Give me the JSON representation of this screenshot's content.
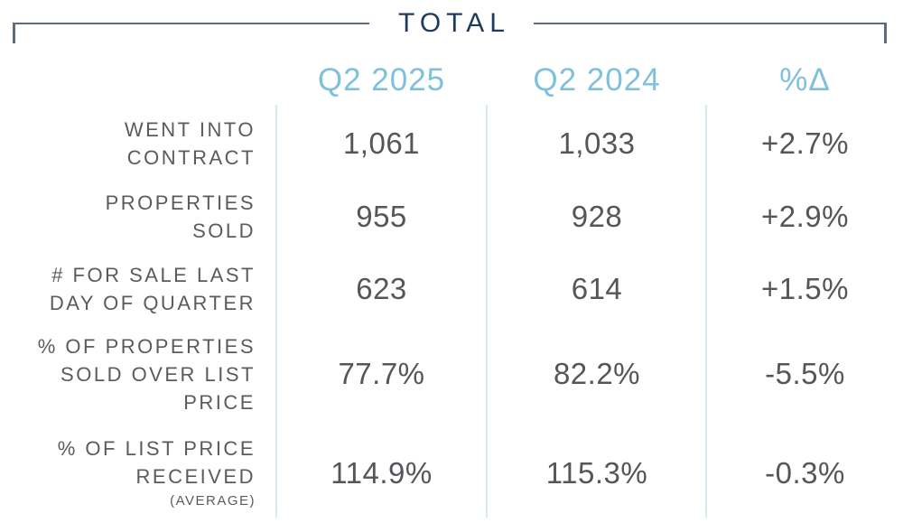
{
  "header": {
    "title": "TOTAL"
  },
  "table": {
    "columns": [
      "Q2 2025",
      "Q2 2024",
      "%Δ"
    ],
    "rows": [
      {
        "label_lines": [
          "WENT INTO",
          "CONTRACT"
        ],
        "values": [
          "1,061",
          "1,033",
          "+2.7%"
        ]
      },
      {
        "label_lines": [
          "PROPERTIES",
          "SOLD"
        ],
        "values": [
          "955",
          "928",
          "+2.9%"
        ]
      },
      {
        "label_lines": [
          "# FOR SALE LAST",
          "DAY OF QUARTER"
        ],
        "values": [
          "623",
          "614",
          "+1.5%"
        ]
      },
      {
        "label_lines": [
          "% OF PROPERTIES",
          "SOLD OVER LIST",
          "PRICE"
        ],
        "values": [
          "77.7%",
          "82.2%",
          "-5.5%"
        ]
      },
      {
        "label_lines": [
          "% OF LIST PRICE",
          "RECEIVED"
        ],
        "sublabel": "(AVERAGE)",
        "values": [
          "114.9%",
          "115.3%",
          "-0.3%"
        ]
      }
    ]
  },
  "colors": {
    "title_navy": "#1e3a5c",
    "bracket_slate": "#5d6b80",
    "header_blue": "#7fc1dd",
    "divider_light_blue": "#d8eaef",
    "text_gray": "#58595b"
  },
  "chart_data": {
    "type": "table",
    "title": "TOTAL",
    "columns": [
      "Metric",
      "Q2 2025",
      "Q2 2024",
      "%Δ"
    ],
    "rows": [
      {
        "metric": "WENT INTO CONTRACT",
        "q2_2025": 1061,
        "q2_2024": 1033,
        "pct_change": 2.7
      },
      {
        "metric": "PROPERTIES SOLD",
        "q2_2025": 955,
        "q2_2024": 928,
        "pct_change": 2.9
      },
      {
        "metric": "# FOR SALE LAST DAY OF QUARTER",
        "q2_2025": 623,
        "q2_2024": 614,
        "pct_change": 1.5
      },
      {
        "metric": "% OF PROPERTIES SOLD OVER LIST PRICE",
        "q2_2025": 77.7,
        "q2_2024": 82.2,
        "pct_change": -5.5
      },
      {
        "metric": "% OF LIST PRICE RECEIVED (AVERAGE)",
        "q2_2025": 114.9,
        "q2_2024": 115.3,
        "pct_change": -0.3
      }
    ]
  }
}
